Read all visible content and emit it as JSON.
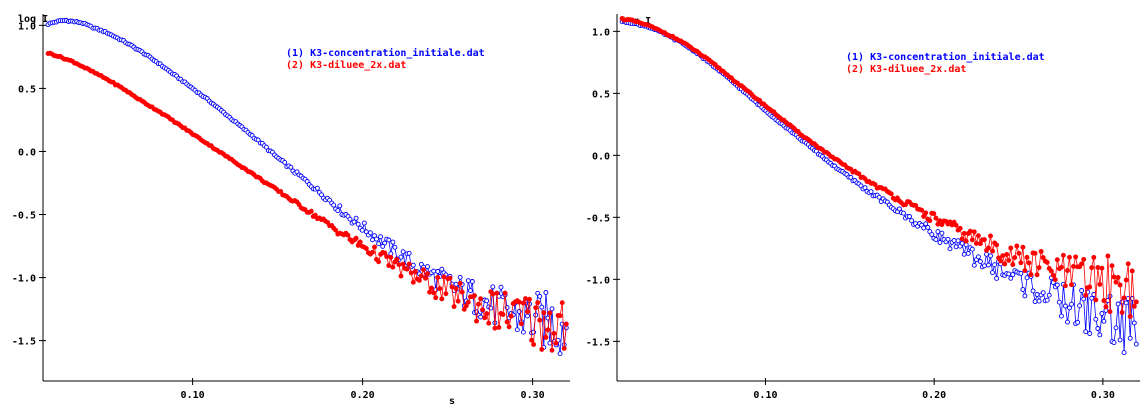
{
  "chart_data": [
    {
      "type": "scatter",
      "title": "",
      "ylabel": "log I",
      "xlabel": "s",
      "xlim": [
        0.012,
        0.322
      ],
      "ylim": [
        -1.82,
        1.09
      ],
      "xticks": [
        0.1,
        0.2,
        0.3
      ],
      "xtick_labels": [
        "0.10",
        "0.20",
        "0.30"
      ],
      "yticks": [
        1.0,
        0.5,
        0.0,
        -0.5,
        -1.0,
        -1.5
      ],
      "ytick_labels": [
        "1.0",
        "0.5",
        "0.0",
        "-0.5",
        "-1.0",
        "-1.5"
      ],
      "legend_position": "top-right",
      "series": [
        {
          "name": "(1) K3-concentration_initiale.dat",
          "color": "#0000ff",
          "marker": "open-circle",
          "x": [
            0.015,
            0.02,
            0.025,
            0.03,
            0.035,
            0.04,
            0.05,
            0.06,
            0.07,
            0.08,
            0.09,
            0.1,
            0.11,
            0.12,
            0.13,
            0.14,
            0.15,
            0.16,
            0.17,
            0.18,
            0.19,
            0.2,
            0.21,
            0.22,
            0.23,
            0.24,
            0.25,
            0.26,
            0.27,
            0.28,
            0.29,
            0.3,
            0.31,
            0.32
          ],
          "y": [
            1.01,
            1.03,
            1.04,
            1.03,
            1.02,
            0.99,
            0.94,
            0.87,
            0.79,
            0.7,
            0.6,
            0.5,
            0.4,
            0.29,
            0.18,
            0.07,
            -0.05,
            -0.16,
            -0.27,
            -0.38,
            -0.5,
            -0.6,
            -0.7,
            -0.8,
            -0.9,
            -0.98,
            -1.05,
            -1.12,
            -1.18,
            -1.24,
            -1.3,
            -1.33,
            -1.36,
            -1.38
          ]
        },
        {
          "name": "(2) K3-diluee_2x.dat",
          "color": "#ff0000",
          "marker": "filled-circle",
          "x": [
            0.015,
            0.02,
            0.03,
            0.04,
            0.05,
            0.06,
            0.07,
            0.08,
            0.09,
            0.1,
            0.11,
            0.12,
            0.13,
            0.14,
            0.15,
            0.16,
            0.17,
            0.18,
            0.19,
            0.2,
            0.21,
            0.22,
            0.23,
            0.24,
            0.25,
            0.26,
            0.27,
            0.28,
            0.29,
            0.3,
            0.31,
            0.32
          ],
          "y": [
            0.78,
            0.76,
            0.71,
            0.64,
            0.57,
            0.49,
            0.4,
            0.32,
            0.23,
            0.14,
            0.05,
            -0.04,
            -0.13,
            -0.22,
            -0.31,
            -0.4,
            -0.49,
            -0.58,
            -0.67,
            -0.75,
            -0.83,
            -0.91,
            -0.98,
            -1.05,
            -1.11,
            -1.17,
            -1.22,
            -1.27,
            -1.31,
            -1.34,
            -1.36,
            -1.38
          ]
        }
      ]
    },
    {
      "type": "scatter",
      "title": "",
      "ylabel": "log I",
      "xlabel": "",
      "xlim": [
        0.012,
        0.322
      ],
      "ylim": [
        -1.82,
        1.14
      ],
      "xticks": [
        0.1,
        0.2,
        0.3
      ],
      "xtick_labels": [
        "0.10",
        "0.20",
        "0.30"
      ],
      "yticks": [
        1.0,
        0.5,
        0.0,
        -0.5,
        -1.0,
        -1.5
      ],
      "ytick_labels": [
        "1.0",
        "0.5",
        "0.0",
        "-0.5",
        "-1.0",
        "-1.5"
      ],
      "legend_position": "top-right",
      "series": [
        {
          "name": "(1) K3-concentration_initiale.dat",
          "color": "#0000ff",
          "marker": "open-circle",
          "x": [
            0.015,
            0.02,
            0.03,
            0.04,
            0.05,
            0.06,
            0.07,
            0.08,
            0.09,
            0.1,
            0.11,
            0.12,
            0.13,
            0.14,
            0.15,
            0.16,
            0.17,
            0.18,
            0.19,
            0.2,
            0.21,
            0.22,
            0.23,
            0.24,
            0.25,
            0.26,
            0.27,
            0.28,
            0.29,
            0.3,
            0.31,
            0.32
          ],
          "y": [
            1.08,
            1.07,
            1.04,
            0.98,
            0.91,
            0.82,
            0.71,
            0.6,
            0.48,
            0.36,
            0.25,
            0.14,
            0.03,
            -0.08,
            -0.18,
            -0.28,
            -0.37,
            -0.46,
            -0.55,
            -0.63,
            -0.71,
            -0.79,
            -0.86,
            -0.93,
            -1.0,
            -1.07,
            -1.14,
            -1.2,
            -1.26,
            -1.31,
            -1.35,
            -1.38
          ]
        },
        {
          "name": "(2) K3-diluee_2x.dat",
          "color": "#ff0000",
          "marker": "filled-circle",
          "x": [
            0.015,
            0.02,
            0.03,
            0.04,
            0.05,
            0.06,
            0.07,
            0.08,
            0.09,
            0.1,
            0.11,
            0.12,
            0.13,
            0.14,
            0.15,
            0.16,
            0.17,
            0.18,
            0.19,
            0.2,
            0.21,
            0.22,
            0.23,
            0.24,
            0.25,
            0.26,
            0.27,
            0.28,
            0.29,
            0.3,
            0.31,
            0.32
          ],
          "y": [
            1.1,
            1.09,
            1.05,
            0.99,
            0.92,
            0.83,
            0.73,
            0.62,
            0.51,
            0.4,
            0.29,
            0.18,
            0.08,
            -0.02,
            -0.11,
            -0.2,
            -0.28,
            -0.36,
            -0.44,
            -0.51,
            -0.58,
            -0.65,
            -0.71,
            -0.77,
            -0.83,
            -0.88,
            -0.93,
            -0.97,
            -1.0,
            -1.02,
            -1.04,
            -1.05
          ]
        }
      ]
    }
  ]
}
